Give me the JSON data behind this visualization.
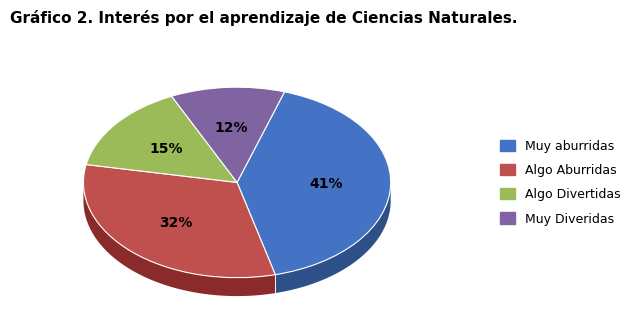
{
  "title": "Gráfico 2. Interés por el aprendizaje de Ciencias Naturales.",
  "labels": [
    "Muy aburridas",
    "Algo Aburridas",
    "Algo Divertidas",
    "Muy Diveridas"
  ],
  "values": [
    41,
    32,
    15,
    12
  ],
  "colors": [
    "#4472C4",
    "#C0504D",
    "#9BBB59",
    "#8064A2"
  ],
  "colors_dark": [
    "#2E5088",
    "#8B2A2A",
    "#6A8040",
    "#5A4575"
  ],
  "pct_labels": [
    "41%",
    "32%",
    "15%",
    "12%"
  ],
  "legend_labels": [
    "Muy aburridas",
    "Algo Aburridas",
    "Algo Divertidas",
    "Muy Diveridas"
  ],
  "title_fontsize": 11,
  "label_fontsize": 10,
  "startangle": 72,
  "depth": 0.12
}
